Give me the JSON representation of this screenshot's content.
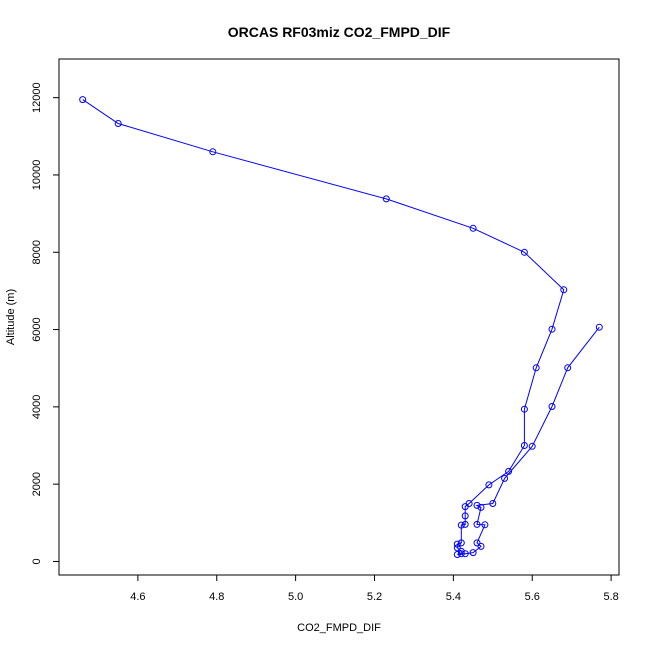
{
  "chart_data": {
    "type": "line",
    "title": "ORCAS RF03miz CO2_FMPD_DIF",
    "xlabel": "CO2_FMPD_DIF",
    "ylabel": "Altitude (m)",
    "xlim": [
      4.4,
      5.82
    ],
    "ylim": [
      -350,
      13000
    ],
    "x_ticks": [
      "4.6",
      "4.8",
      "5.0",
      "5.2",
      "5.4",
      "5.6",
      "5.8"
    ],
    "y_ticks": [
      "0",
      "2000",
      "4000",
      "6000",
      "8000",
      "10000",
      "12000"
    ],
    "grid": false,
    "series": [
      {
        "color": "#0000ff",
        "marker": "open-circle",
        "points": [
          {
            "x": 4.46,
            "y": 11950
          },
          {
            "x": 4.55,
            "y": 11330
          },
          {
            "x": 4.79,
            "y": 10600
          },
          {
            "x": 5.23,
            "y": 9380
          },
          {
            "x": 5.45,
            "y": 8620
          },
          {
            "x": 5.58,
            "y": 8000
          },
          {
            "x": 5.68,
            "y": 7030
          },
          {
            "x": 5.65,
            "y": 6010
          },
          {
            "x": 5.61,
            "y": 5010
          },
          {
            "x": 5.58,
            "y": 3940
          },
          {
            "x": 5.58,
            "y": 3000
          },
          {
            "x": 5.54,
            "y": 2330
          },
          {
            "x": 5.49,
            "y": 1980
          },
          {
            "x": 5.44,
            "y": 1500
          },
          {
            "x": 5.43,
            "y": 1420
          },
          {
            "x": 5.43,
            "y": 1180
          },
          {
            "x": 5.43,
            "y": 960
          },
          {
            "x": 5.42,
            "y": 940
          },
          {
            "x": 5.42,
            "y": 480
          },
          {
            "x": 5.41,
            "y": 450
          },
          {
            "x": 5.41,
            "y": 350
          },
          {
            "x": 5.42,
            "y": 260
          },
          {
            "x": 5.42,
            "y": 200
          },
          {
            "x": 5.41,
            "y": 180
          },
          {
            "x": 5.43,
            "y": 200
          },
          {
            "x": 5.45,
            "y": 230
          },
          {
            "x": 5.47,
            "y": 390
          },
          {
            "x": 5.46,
            "y": 480
          },
          {
            "x": 5.48,
            "y": 950
          },
          {
            "x": 5.46,
            "y": 960
          },
          {
            "x": 5.47,
            "y": 1400
          },
          {
            "x": 5.46,
            "y": 1450
          },
          {
            "x": 5.5,
            "y": 1500
          },
          {
            "x": 5.53,
            "y": 2150
          },
          {
            "x": 5.6,
            "y": 2980
          },
          {
            "x": 5.65,
            "y": 4010
          },
          {
            "x": 5.69,
            "y": 5010
          },
          {
            "x": 5.77,
            "y": 6060
          }
        ]
      }
    ]
  }
}
